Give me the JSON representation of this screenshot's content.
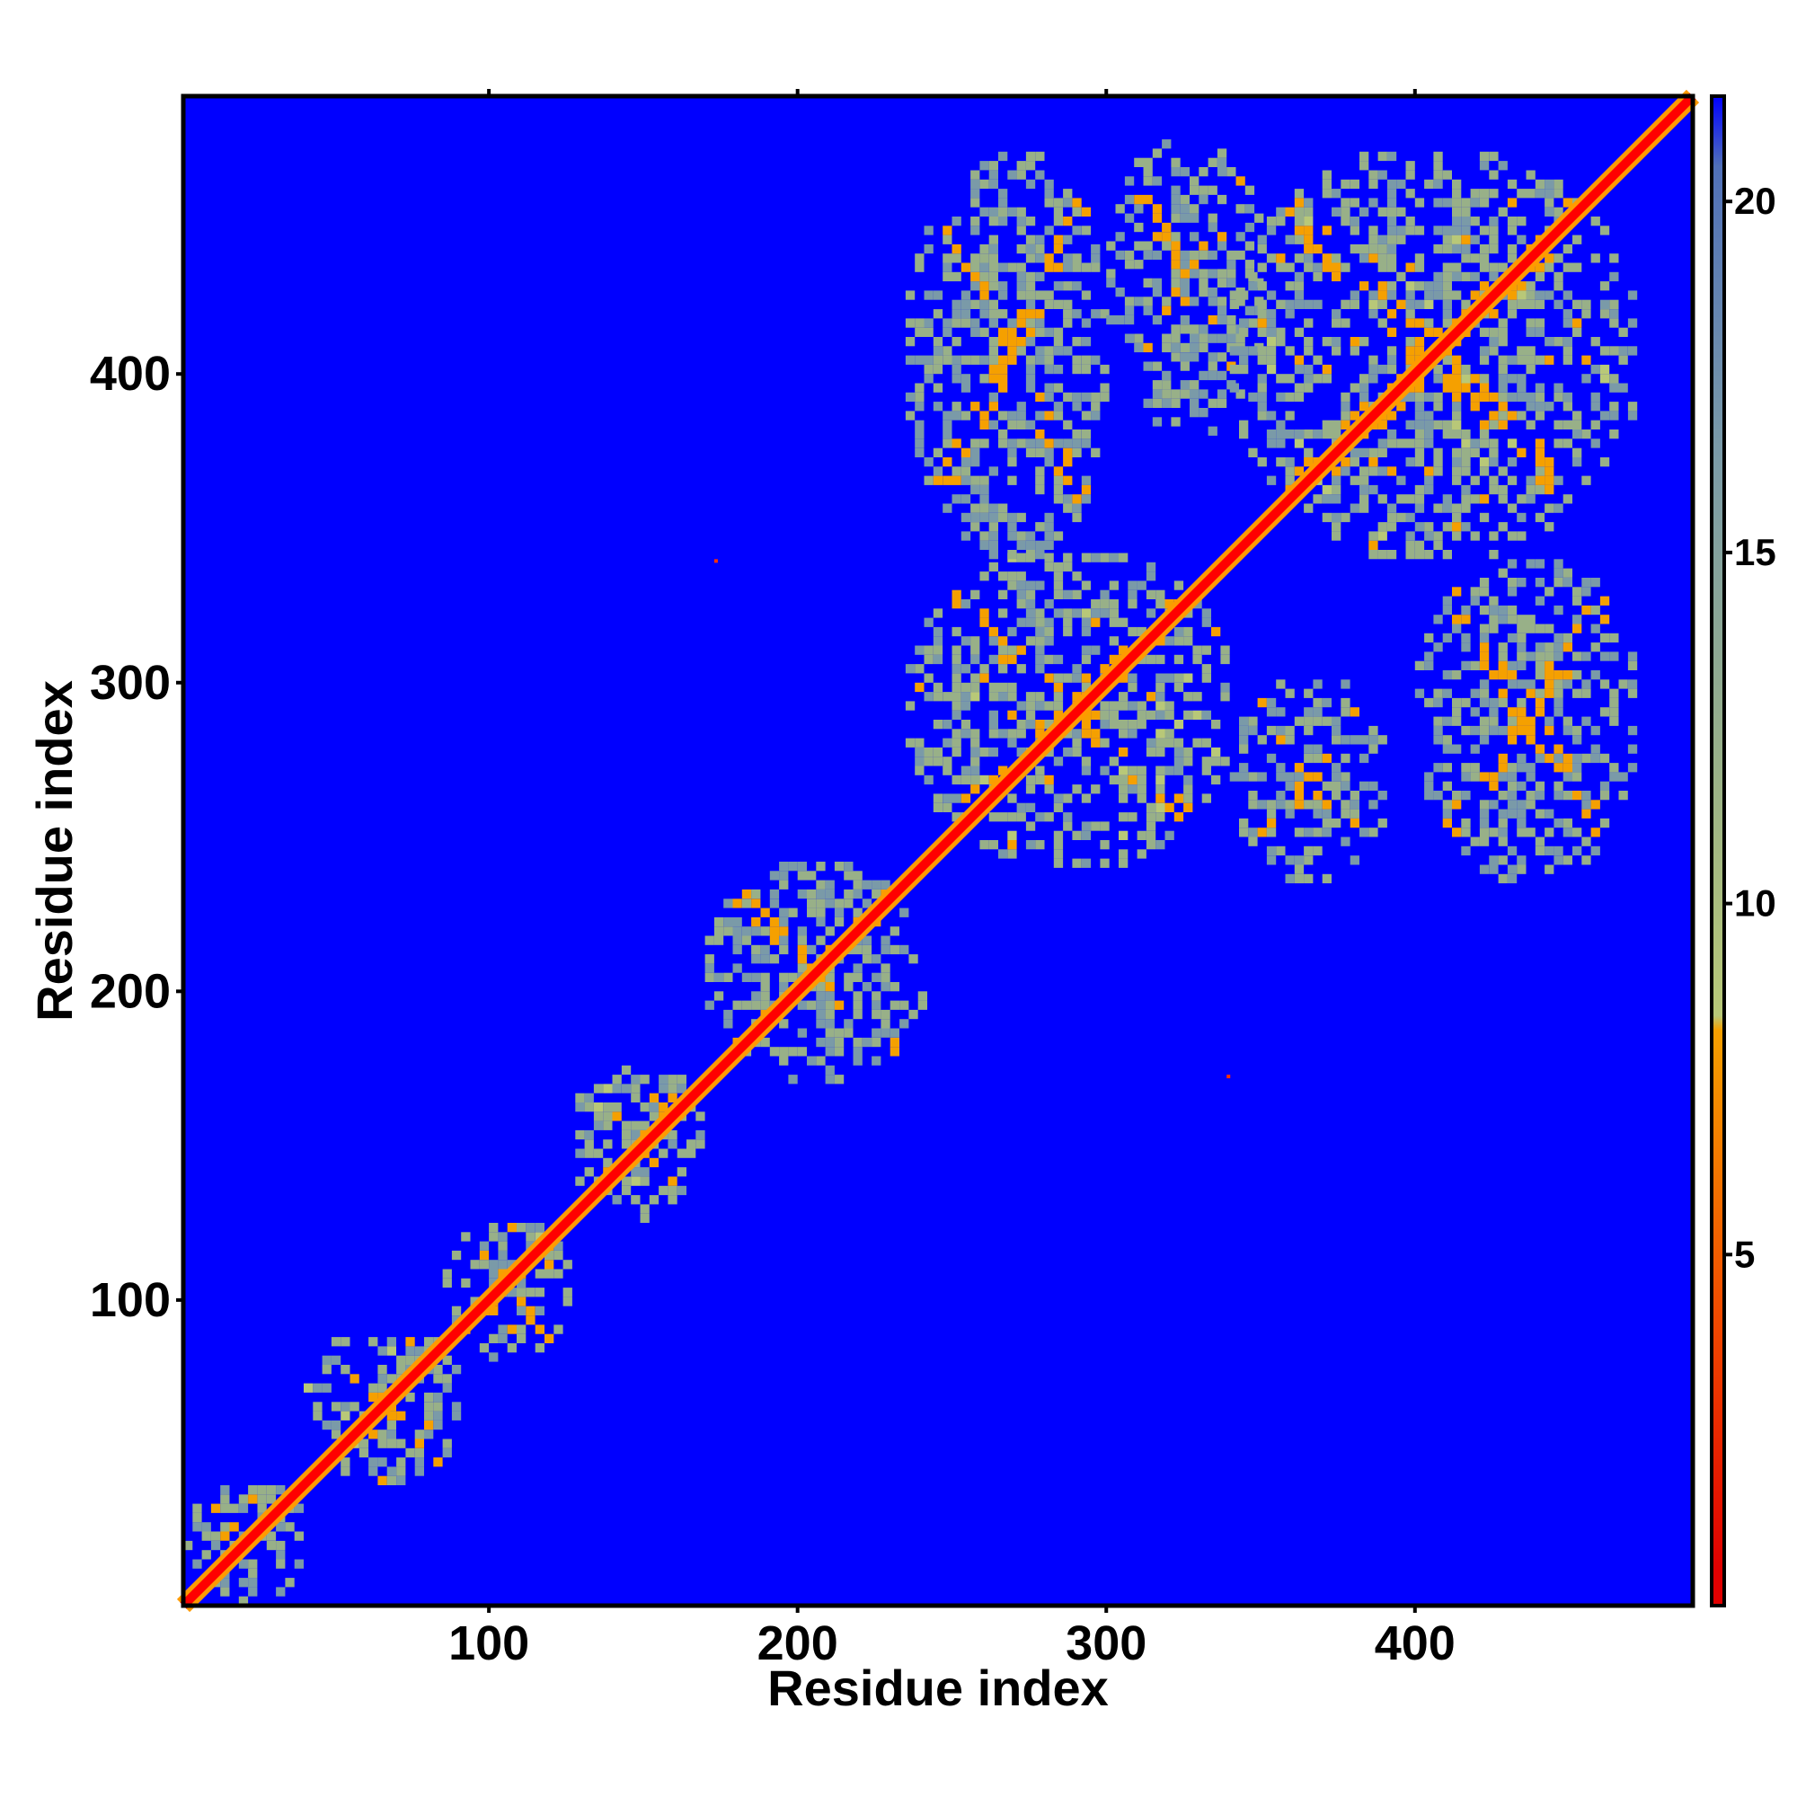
{
  "chart_data": {
    "type": "heatmap",
    "title": "",
    "xlabel": "Residue index",
    "ylabel": "Residue index",
    "xlim": [
      1,
      490
    ],
    "ylim": [
      1,
      490
    ],
    "x_ticks": [
      100,
      200,
      300,
      400
    ],
    "y_ticks": [
      100,
      200,
      300,
      400
    ],
    "colorbar": {
      "range": [
        0,
        21.5
      ],
      "ticks": [
        5,
        10,
        15,
        20
      ],
      "stops": [
        {
          "value": 0.5,
          "color": "#e00000"
        },
        {
          "value": 4,
          "color": "#f04800"
        },
        {
          "value": 8.2,
          "color": "#f5a000"
        },
        {
          "value": 8.4,
          "color": "#b8c878"
        },
        {
          "value": 12,
          "color": "#98b088"
        },
        {
          "value": 16.5,
          "color": "#7a9aa8"
        },
        {
          "value": 20.5,
          "color": "#5070b8"
        },
        {
          "value": 21.5,
          "color": "#0000ff"
        }
      ]
    },
    "background_value_color": "#0000ff",
    "matrix_description": "Residue-residue distance map; low distances (red) along diagonal",
    "diagonal": {
      "value": 2,
      "color": "#ff0000"
    },
    "contact_blocks": [
      {
        "x": [
          1,
          40
        ],
        "y": [
          1,
          40
        ],
        "value": 11
      },
      {
        "x": [
          40,
          90
        ],
        "y": [
          40,
          90
        ],
        "value": 11
      },
      {
        "x": [
          85,
          125
        ],
        "y": [
          80,
          125
        ],
        "value": 11
      },
      {
        "x": [
          125,
          170
        ],
        "y": [
          125,
          175
        ],
        "value": 11
      },
      {
        "x": [
          170,
          240
        ],
        "y": [
          170,
          240
        ],
        "value": 12
      },
      {
        "x": [
          235,
          340
        ],
        "y": [
          240,
          340
        ],
        "value": 11
      },
      {
        "x": [
          235,
          300
        ],
        "y": [
          340,
          470
        ],
        "value": 12
      },
      {
        "x": [
          300,
          350
        ],
        "y": [
          380,
          475
        ],
        "value": 12
      },
      {
        "x": [
          340,
          470
        ],
        "y": [
          340,
          470
        ],
        "value": 11
      },
      {
        "x": [
          340,
          390
        ],
        "y": [
          235,
          300
        ],
        "value": 12
      },
      {
        "x": [
          400,
          470
        ],
        "y": [
          235,
          340
        ],
        "value": 12
      }
    ],
    "isolated_contacts": [
      {
        "x": 173,
        "y": 340
      },
      {
        "x": 339,
        "y": 173
      }
    ],
    "grid": false,
    "legend": "right colorbar"
  }
}
